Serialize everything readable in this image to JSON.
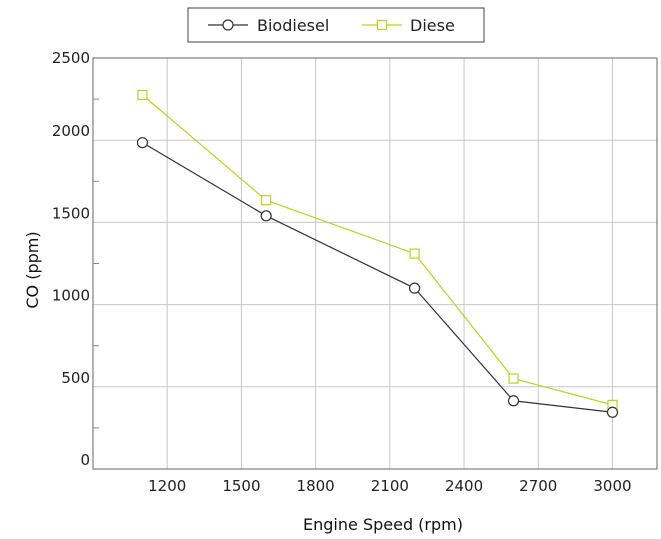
{
  "chart_data": {
    "type": "line",
    "xlabel": "Engine Speed (rpm)",
    "ylabel": "CO (ppm)",
    "xlim": [
      900,
      3180
    ],
    "ylim": [
      0,
      2500
    ],
    "x_ticks": [
      1200,
      1500,
      1800,
      2100,
      2400,
      2700,
      3000
    ],
    "y_ticks": [
      0,
      500,
      1000,
      1500,
      2000,
      2500
    ],
    "grid": true,
    "legend_position": "top-center",
    "series": [
      {
        "name": "Biodiesel",
        "marker": "circle",
        "color": "#333333",
        "x": [
          1100,
          1600,
          2200,
          2600,
          3000
        ],
        "y": [
          1985,
          1540,
          1100,
          415,
          345
        ]
      },
      {
        "name": "Diese",
        "marker": "square",
        "color": "#b7d22a",
        "x": [
          1100,
          1600,
          2200,
          2600,
          3000
        ],
        "y": [
          2275,
          1635,
          1310,
          550,
          390
        ]
      }
    ]
  }
}
